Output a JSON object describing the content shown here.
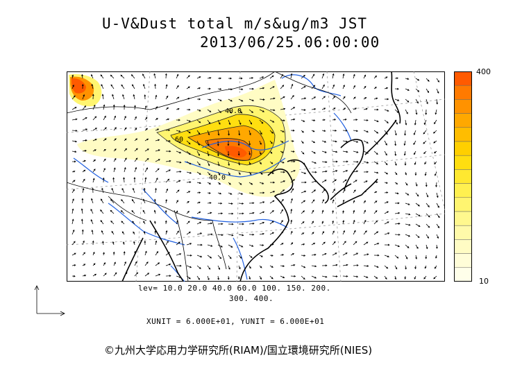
{
  "title_line1": "U-V&Dust total m/s&ug/m3 JST",
  "title_line2": "2013/06/25.06:00:00",
  "levels_line1": "lev= 10.0 20.0 40.0 60.0 100. 150. 200.",
  "levels_line2": "300. 400.",
  "unit_line": "XUNIT = 6.000E+01, YUNIT = 6.000E+01",
  "credit": "©九州大学応用力学研究所(RIAM)/国立環境研究所(NIES)",
  "colorbar": {
    "max_label": "400",
    "min_label": "10",
    "colors": [
      "#ff5a00",
      "#ff7a00",
      "#ff9200",
      "#ffa800",
      "#ffbd00",
      "#ffcf00",
      "#ffde10",
      "#ffe830",
      "#fff050",
      "#fff570",
      "#fff88e",
      "#fffaaa",
      "#fffcc4",
      "#fffdd8",
      "#ffffea"
    ]
  },
  "contour_labels": [
    "40.0",
    "60",
    "40.0"
  ],
  "colors": {
    "land_outline": "#000000",
    "rivers": "#1f5fe0",
    "grid": "#888888"
  }
}
